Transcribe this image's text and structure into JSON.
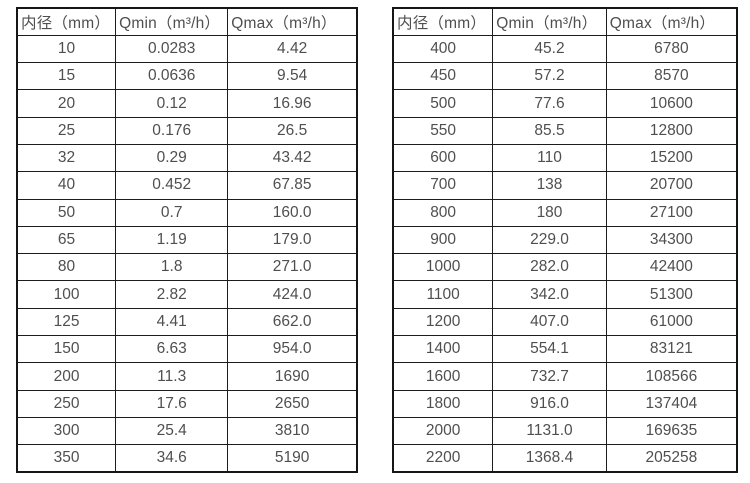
{
  "colors": {
    "border": "#1c1c1c",
    "text": "#4f4f4f",
    "background": "#ffffff"
  },
  "tables": [
    {
      "name": "flow-spec-small-diameters",
      "headers": [
        "内径（mm）",
        "Qmin（m³/h）",
        "Qmax（m³/h）"
      ],
      "rows": [
        [
          "10",
          "0.0283",
          "4.42"
        ],
        [
          "15",
          "0.0636",
          "9.54"
        ],
        [
          "20",
          "0.12",
          "16.96"
        ],
        [
          "25",
          "0.176",
          "26.5"
        ],
        [
          "32",
          "0.29",
          "43.42"
        ],
        [
          "40",
          "0.452",
          "67.85"
        ],
        [
          "50",
          "0.7",
          "160.0"
        ],
        [
          "65",
          "1.19",
          "179.0"
        ],
        [
          "80",
          "1.8",
          "271.0"
        ],
        [
          "100",
          "2.82",
          "424.0"
        ],
        [
          "125",
          "4.41",
          "662.0"
        ],
        [
          "150",
          "6.63",
          "954.0"
        ],
        [
          "200",
          "11.3",
          "1690"
        ],
        [
          "250",
          "17.6",
          "2650"
        ],
        [
          "300",
          "25.4",
          "3810"
        ],
        [
          "350",
          "34.6",
          "5190"
        ]
      ]
    },
    {
      "name": "flow-spec-large-diameters",
      "headers": [
        "内径（mm）",
        "Qmin（m³/h）",
        "Qmax（m³/h）"
      ],
      "rows": [
        [
          "400",
          "45.2",
          "6780"
        ],
        [
          "450",
          "57.2",
          "8570"
        ],
        [
          "500",
          "77.6",
          "10600"
        ],
        [
          "550",
          "85.5",
          "12800"
        ],
        [
          "600",
          "110",
          "15200"
        ],
        [
          "700",
          "138",
          "20700"
        ],
        [
          "800",
          "180",
          "27100"
        ],
        [
          "900",
          "229.0",
          "34300"
        ],
        [
          "1000",
          "282.0",
          "42400"
        ],
        [
          "1100",
          "342.0",
          "51300"
        ],
        [
          "1200",
          "407.0",
          "61000"
        ],
        [
          "1400",
          "554.1",
          "83121"
        ],
        [
          "1600",
          "732.7",
          "108566"
        ],
        [
          "1800",
          "916.0",
          "137404"
        ],
        [
          "2000",
          "1131.0",
          "169635"
        ],
        [
          "2200",
          "1368.4",
          "205258"
        ]
      ]
    }
  ]
}
